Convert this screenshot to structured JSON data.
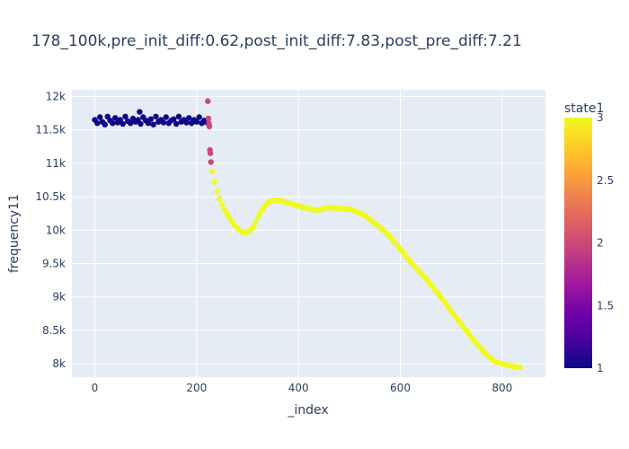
{
  "chart_data": {
    "type": "scatter",
    "title": "178_100k,pre_init_diff:0.62,post_init_diff:7.83,post_pre_diff:7.21",
    "xlabel": "_index",
    "ylabel": "frequency11",
    "xlim": [
      -45,
      885
    ],
    "ylim": [
      7800,
      12100
    ],
    "xticks": [
      0,
      200,
      400,
      600,
      800
    ],
    "xtick_labels": [
      "0",
      "200",
      "400",
      "600",
      "800"
    ],
    "yticks": [
      8000,
      8500,
      9000,
      9500,
      10000,
      10500,
      11000,
      11500,
      12000
    ],
    "ytick_labels": [
      "8k",
      "8.5k",
      "9k",
      "9.5k",
      "10k",
      "10.5k",
      "11k",
      "11.5k",
      "12k"
    ],
    "grid": true,
    "colorbar": {
      "title": "state1",
      "range": [
        1,
        3
      ],
      "ticks": [
        1,
        1.5,
        2,
        2.5,
        3
      ],
      "tick_labels": [
        "1",
        "1.5",
        "2",
        "2.5",
        "3"
      ],
      "colorscale": [
        "#0d0887",
        "#46039f",
        "#7201a8",
        "#9c179e",
        "#bd3786",
        "#d8576b",
        "#ed7953",
        "#fb9f3a",
        "#fdca26",
        "#f0f921"
      ]
    },
    "series": [
      {
        "state": 1,
        "color": "#0d0887",
        "x": [
          0,
          5,
          10,
          15,
          20,
          25,
          30,
          35,
          40,
          45,
          50,
          55,
          60,
          65,
          70,
          75,
          80,
          85,
          90,
          95,
          100,
          105,
          110,
          115,
          120,
          125,
          130,
          135,
          140,
          145,
          150,
          155,
          160,
          165,
          170,
          175,
          180,
          185,
          190,
          195,
          200,
          205,
          210,
          215,
          220,
          88
        ],
        "y": [
          11650,
          11600,
          11690,
          11620,
          11580,
          11700,
          11640,
          11600,
          11680,
          11610,
          11650,
          11590,
          11700,
          11630,
          11600,
          11670,
          11620,
          11650,
          11590,
          11690,
          11640,
          11600,
          11660,
          11580,
          11700,
          11620,
          11650,
          11610,
          11690,
          11600,
          11640,
          11660,
          11590,
          11700,
          11620,
          11650,
          11610,
          11680,
          11600,
          11650,
          11620,
          11690,
          11600,
          11640,
          11610,
          11770
        ]
      },
      {
        "state": 2,
        "color": "#cc4778",
        "x": [
          222,
          223,
          224,
          225,
          226,
          227,
          228
        ],
        "y": [
          11930,
          11670,
          11600,
          11550,
          11200,
          11150,
          11020
        ]
      },
      {
        "state": 3,
        "color": "#f0f921",
        "x": [
          230,
          235,
          240,
          245,
          250,
          255,
          260,
          265,
          270,
          275,
          280,
          285,
          290,
          295,
          300,
          305,
          310,
          315,
          320,
          325,
          330,
          335,
          340,
          345,
          350,
          355,
          360,
          365,
          370,
          375,
          380,
          385,
          390,
          395,
          400,
          405,
          410,
          415,
          420,
          425,
          430,
          435,
          440,
          445,
          450,
          455,
          460,
          465,
          470,
          475,
          480,
          485,
          490,
          495,
          500,
          505,
          510,
          515,
          520,
          525,
          530,
          535,
          540,
          545,
          550,
          555,
          560,
          565,
          570,
          575,
          580,
          585,
          590,
          595,
          600,
          605,
          610,
          615,
          620,
          625,
          630,
          635,
          640,
          645,
          650,
          655,
          660,
          665,
          670,
          675,
          680,
          685,
          690,
          695,
          700,
          705,
          710,
          715,
          720,
          725,
          730,
          735,
          740,
          745,
          750,
          755,
          760,
          765,
          770,
          775,
          780,
          785,
          790,
          795,
          800,
          805,
          810,
          815,
          820,
          825,
          830,
          835
        ],
        "y": [
          10880,
          10720,
          10580,
          10470,
          10380,
          10300,
          10230,
          10170,
          10120,
          10070,
          10030,
          9990,
          9970,
          9960,
          9970,
          9990,
          10040,
          10110,
          10190,
          10260,
          10320,
          10370,
          10410,
          10430,
          10440,
          10450,
          10445,
          10440,
          10430,
          10420,
          10410,
          10395,
          10380,
          10370,
          10360,
          10350,
          10340,
          10330,
          10320,
          10310,
          10305,
          10300,
          10300,
          10310,
          10320,
          10330,
          10340,
          10335,
          10330,
          10330,
          10325,
          10320,
          10320,
          10315,
          10310,
          10300,
          10290,
          10275,
          10260,
          10240,
          10215,
          10190,
          10160,
          10130,
          10100,
          10070,
          10040,
          10010,
          9975,
          9935,
          9895,
          9850,
          9805,
          9760,
          9715,
          9670,
          9620,
          9575,
          9525,
          9480,
          9440,
          9400,
          9360,
          9320,
          9275,
          9230,
          9180,
          9135,
          9085,
          9040,
          8990,
          8945,
          8890,
          8840,
          8790,
          8740,
          8690,
          8640,
          8590,
          8540,
          8490,
          8440,
          8390,
          8345,
          8300,
          8255,
          8210,
          8170,
          8130,
          8095,
          8060,
          8040,
          8020,
          8010,
          8000,
          7990,
          7980,
          7970,
          7960,
          7955,
          7950,
          7945
        ]
      }
    ]
  }
}
